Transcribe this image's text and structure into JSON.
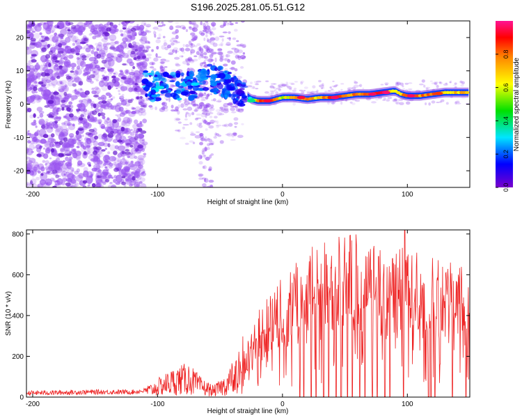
{
  "figure_title": "S196.2025.281.05.51.G12",
  "colors": {
    "snr_line": "#ee2222",
    "band": "#1144ff",
    "noise_dot": "#9a55f0",
    "axis": "#000000"
  },
  "chart_data": [
    {
      "type": "heatmap",
      "title": "S196.2025.281.05.51.G12",
      "xlabel": "Height of straight line (km)",
      "ylabel": "Frequency (Hz)",
      "xlim": [
        -205,
        150
      ],
      "ylim": [
        -25,
        25
      ],
      "x_ticks": [
        -200,
        -100,
        0,
        100
      ],
      "x_tick_labels": [
        "-200",
        "-100",
        "0",
        "100"
      ],
      "y_ticks": [
        -20,
        -10,
        0,
        10,
        20
      ],
      "y_tick_labels": [
        "-20",
        "-10",
        "0",
        "10",
        "20"
      ],
      "colorbar": {
        "label": "Normalized spectral amplitude",
        "range": [
          0,
          1
        ],
        "ticks": [
          0.0,
          0.2,
          0.4,
          0.6,
          0.8
        ],
        "tick_labels": [
          "0.0",
          "0.2",
          "0.4",
          "0.6",
          "0.8"
        ],
        "colormap": [
          "#7a00cc",
          "#0000ff",
          "#00e5ff",
          "#00e000",
          "#ffff00",
          "#ff8800",
          "#ff0000",
          "#ff1493"
        ]
      },
      "ridge": {
        "description": "dominant spectral ridge",
        "x": [
          -110,
          -100,
          -90,
          -80,
          -70,
          -60,
          -50,
          -40,
          -30,
          -25,
          -20,
          -10,
          0,
          10,
          20,
          30,
          40,
          50,
          60,
          70,
          80,
          90,
          95,
          100,
          110,
          120,
          130,
          140,
          150
        ],
        "y": [
          6,
          5,
          6,
          5,
          6,
          8,
          7,
          5,
          3,
          1.5,
          1,
          1,
          2,
          2,
          1.5,
          2,
          2,
          2.5,
          3,
          3,
          3.5,
          4,
          3,
          2.5,
          2.5,
          3,
          3.5,
          3.5,
          3.5
        ],
        "amplitude": [
          0.4,
          0.35,
          0.3,
          0.35,
          0.3,
          0.3,
          0.3,
          0.25,
          0.25,
          0.3,
          0.75,
          0.8,
          0.55,
          0.65,
          0.7,
          0.6,
          0.85,
          0.75,
          0.7,
          0.75,
          0.9,
          0.5,
          0.65,
          0.85,
          0.7,
          0.75,
          0.6,
          0.65,
          0.6
        ]
      },
      "noise_region": {
        "x_range": [
          -205,
          -30
        ],
        "y_range": [
          -25,
          25
        ]
      }
    },
    {
      "type": "line",
      "xlabel": "Height of straight line (km)",
      "ylabel": "SNR (10 * v/v)",
      "xlim": [
        -205,
        150
      ],
      "ylim": [
        0,
        820
      ],
      "x_ticks": [
        -200,
        -100,
        0,
        100
      ],
      "x_tick_labels": [
        "-200",
        "-100",
        "0",
        "100"
      ],
      "y_ticks": [
        0,
        200,
        400,
        600,
        800
      ],
      "y_tick_labels": [
        "0",
        "200",
        "400",
        "600",
        "800"
      ],
      "series": [
        {
          "name": "SNR",
          "envelope_x": [
            -205,
            -180,
            -150,
            -120,
            -105,
            -95,
            -85,
            -75,
            -65,
            -55,
            -45,
            -35,
            -25,
            -15,
            -5,
            5,
            15,
            25,
            35,
            45,
            55,
            65,
            75,
            85,
            95,
            105,
            115,
            125,
            135,
            145,
            150
          ],
          "envelope_y": [
            20,
            22,
            25,
            25,
            35,
            60,
            80,
            90,
            50,
            30,
            60,
            130,
            230,
            330,
            380,
            440,
            470,
            520,
            550,
            560,
            560,
            540,
            520,
            510,
            520,
            500,
            490,
            480,
            470,
            460,
            460
          ],
          "dropouts_x": [
            14,
            17,
            23,
            27,
            33,
            37,
            43,
            47,
            52,
            56,
            62,
            66,
            72,
            76,
            82,
            86,
            97,
            117,
            119,
            122,
            136,
            147
          ],
          "spikes": [
            {
              "x": 98,
              "y": 820
            },
            {
              "x": 35,
              "y": 700
            },
            {
              "x": 77,
              "y": 690
            },
            {
              "x": 88,
              "y": 680
            }
          ]
        }
      ]
    }
  ]
}
